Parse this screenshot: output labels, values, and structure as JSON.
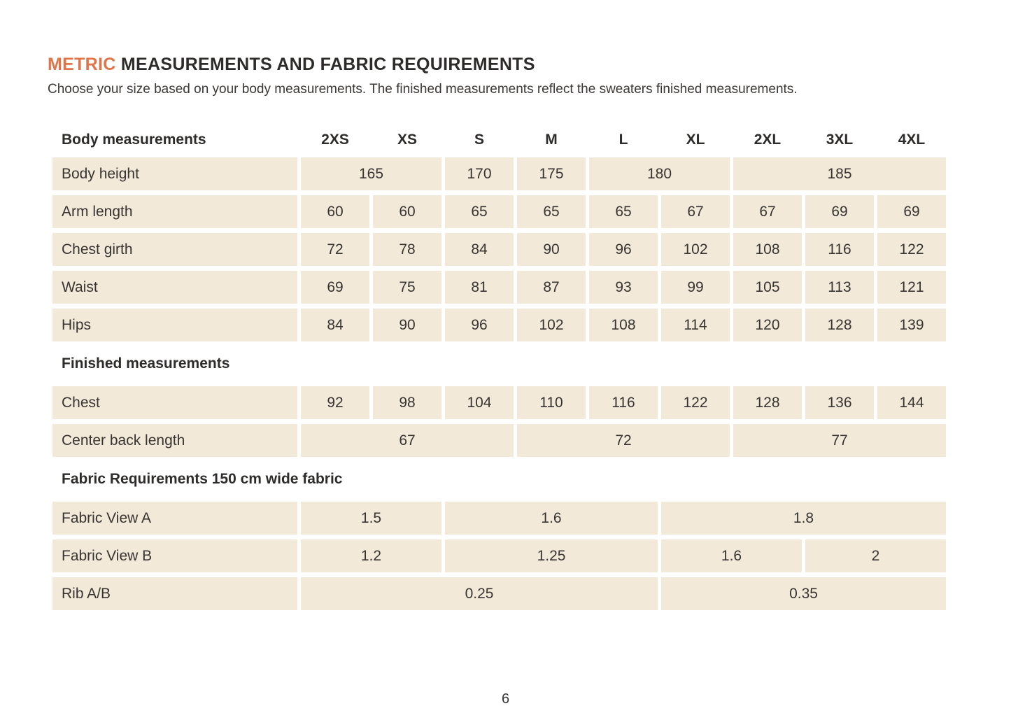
{
  "page": {
    "title_highlight": "METRIC",
    "title_rest": "MEASUREMENTS AND FABRIC REQUIREMENTS",
    "subtitle": "Choose your size based on your body measurements. The finished measurements reflect the sweaters finished measurements.",
    "page_number": "6",
    "colors": {
      "accent": "#E0754A",
      "cell_bg": "#F2E9D8",
      "text": "#373432"
    }
  },
  "table": {
    "header_label": "Body measurements",
    "columns": [
      "2XS",
      "XS",
      "S",
      "M",
      "L",
      "XL",
      "2XL",
      "3XL",
      "4XL"
    ],
    "sections": [
      {
        "heading": null,
        "rows": [
          {
            "label": "Body height",
            "cells": [
              {
                "value": "165",
                "span": 2
              },
              {
                "value": "170",
                "span": 1
              },
              {
                "value": "175",
                "span": 1
              },
              {
                "value": "180",
                "span": 2
              },
              {
                "value": "185",
                "span": 3
              }
            ]
          },
          {
            "label": "Arm length",
            "cells": [
              {
                "value": "60",
                "span": 1
              },
              {
                "value": "60",
                "span": 1
              },
              {
                "value": "65",
                "span": 1
              },
              {
                "value": "65",
                "span": 1
              },
              {
                "value": "65",
                "span": 1
              },
              {
                "value": "67",
                "span": 1
              },
              {
                "value": "67",
                "span": 1
              },
              {
                "value": "69",
                "span": 1
              },
              {
                "value": "69",
                "span": 1
              }
            ]
          },
          {
            "label": "Chest girth",
            "cells": [
              {
                "value": "72",
                "span": 1
              },
              {
                "value": "78",
                "span": 1
              },
              {
                "value": "84",
                "span": 1
              },
              {
                "value": "90",
                "span": 1
              },
              {
                "value": "96",
                "span": 1
              },
              {
                "value": "102",
                "span": 1
              },
              {
                "value": "108",
                "span": 1
              },
              {
                "value": "116",
                "span": 1
              },
              {
                "value": "122",
                "span": 1
              }
            ]
          },
          {
            "label": "Waist",
            "cells": [
              {
                "value": "69",
                "span": 1
              },
              {
                "value": "75",
                "span": 1
              },
              {
                "value": "81",
                "span": 1
              },
              {
                "value": "87",
                "span": 1
              },
              {
                "value": "93",
                "span": 1
              },
              {
                "value": "99",
                "span": 1
              },
              {
                "value": "105",
                "span": 1
              },
              {
                "value": "113",
                "span": 1
              },
              {
                "value": "121",
                "span": 1
              }
            ]
          },
          {
            "label": "Hips",
            "cells": [
              {
                "value": "84",
                "span": 1
              },
              {
                "value": "90",
                "span": 1
              },
              {
                "value": "96",
                "span": 1
              },
              {
                "value": "102",
                "span": 1
              },
              {
                "value": "108",
                "span": 1
              },
              {
                "value": "114",
                "span": 1
              },
              {
                "value": "120",
                "span": 1
              },
              {
                "value": "128",
                "span": 1
              },
              {
                "value": "139",
                "span": 1
              }
            ]
          }
        ]
      },
      {
        "heading": "Finished measurements",
        "rows": [
          {
            "label": "Chest",
            "cells": [
              {
                "value": "92",
                "span": 1
              },
              {
                "value": "98",
                "span": 1
              },
              {
                "value": "104",
                "span": 1
              },
              {
                "value": "110",
                "span": 1
              },
              {
                "value": "116",
                "span": 1
              },
              {
                "value": "122",
                "span": 1
              },
              {
                "value": "128",
                "span": 1
              },
              {
                "value": "136",
                "span": 1
              },
              {
                "value": "144",
                "span": 1
              }
            ]
          },
          {
            "label": "Center back length",
            "cells": [
              {
                "value": "67",
                "span": 3
              },
              {
                "value": "72",
                "span": 3
              },
              {
                "value": "77",
                "span": 3
              }
            ]
          }
        ]
      },
      {
        "heading": "Fabric Requirements 150 cm wide fabric",
        "rows": [
          {
            "label": "Fabric View A",
            "cells": [
              {
                "value": "1.5",
                "span": 2
              },
              {
                "value": "1.6",
                "span": 3
              },
              {
                "value": "1.8",
                "span": 4
              }
            ]
          },
          {
            "label": "Fabric View B",
            "cells": [
              {
                "value": "1.2",
                "span": 2
              },
              {
                "value": "1.25",
                "span": 3
              },
              {
                "value": "1.6",
                "span": 2
              },
              {
                "value": "2",
                "span": 2
              }
            ]
          },
          {
            "label": "Rib A/B",
            "cells": [
              {
                "value": "0.25",
                "span": 5
              },
              {
                "value": "0.35",
                "span": 4
              }
            ]
          }
        ]
      }
    ]
  }
}
